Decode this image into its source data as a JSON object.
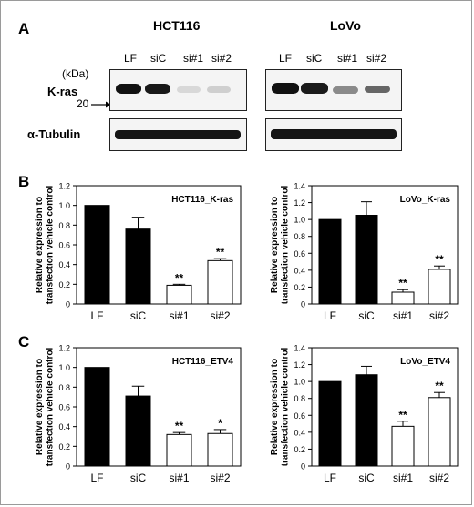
{
  "figure": {
    "panel_labels": [
      "A",
      "B",
      "C"
    ]
  },
  "blot": {
    "cell_lines": [
      "HCT116",
      "LoVo"
    ],
    "lanes": [
      "LF",
      "siC",
      "si#1",
      "si#2"
    ],
    "kda_label": "(kDa)",
    "marker_label": "20",
    "row_labels": [
      "K-ras",
      "α-Tubulin"
    ]
  },
  "chart_data": [
    {
      "type": "bar",
      "title": "HCT116_K-ras",
      "ylabel": "Relative expression to transfection vehicle control",
      "categories": [
        "LF",
        "siC",
        "si#1",
        "si#2"
      ],
      "values": [
        1.0,
        0.76,
        0.19,
        0.44
      ],
      "errors": [
        0,
        0.12,
        0.01,
        0.02
      ],
      "significance": [
        "",
        "",
        "**",
        "**"
      ],
      "bar_fill": [
        "#000000",
        "#000000",
        "#ffffff",
        "#ffffff"
      ],
      "ylim": [
        0,
        1.2
      ],
      "ytick_labels": [
        "0",
        "0.2",
        "0.4",
        "0.6",
        "0.8",
        "1.0",
        "1.2"
      ]
    },
    {
      "type": "bar",
      "title": "LoVo_K-ras",
      "ylabel": "Relative expression to transfection vehicle control",
      "categories": [
        "LF",
        "siC",
        "si#1",
        "si#2"
      ],
      "values": [
        1.0,
        1.05,
        0.14,
        0.41
      ],
      "errors": [
        0,
        0.16,
        0.03,
        0.04
      ],
      "significance": [
        "",
        "",
        "**",
        "**"
      ],
      "bar_fill": [
        "#000000",
        "#000000",
        "#ffffff",
        "#ffffff"
      ],
      "ylim": [
        0,
        1.4
      ],
      "ytick_labels": [
        "0",
        "0.2",
        "0.4",
        "0.6",
        "0.8",
        "1.0",
        "1.2",
        "1.4"
      ]
    },
    {
      "type": "bar",
      "title": "HCT116_ETV4",
      "ylabel": "Relative expression to transfection vehicle control",
      "categories": [
        "LF",
        "siC",
        "si#1",
        "si#2"
      ],
      "values": [
        1.0,
        0.71,
        0.32,
        0.33
      ],
      "errors": [
        0,
        0.1,
        0.02,
        0.04
      ],
      "significance": [
        "",
        "",
        "**",
        "*"
      ],
      "bar_fill": [
        "#000000",
        "#000000",
        "#ffffff",
        "#ffffff"
      ],
      "ylim": [
        0,
        1.2
      ],
      "ytick_labels": [
        "0",
        "0.2",
        "0.4",
        "0.6",
        "0.8",
        "1.0",
        "1.2"
      ]
    },
    {
      "type": "bar",
      "title": "LoVo_ETV4",
      "ylabel": "Relative expression to transfection vehicle control",
      "categories": [
        "LF",
        "siC",
        "si#1",
        "si#2"
      ],
      "values": [
        1.0,
        1.08,
        0.47,
        0.81
      ],
      "errors": [
        0,
        0.1,
        0.06,
        0.06
      ],
      "significance": [
        "",
        "",
        "**",
        "**"
      ],
      "bar_fill": [
        "#000000",
        "#000000",
        "#ffffff",
        "#ffffff"
      ],
      "ylim": [
        0,
        1.4
      ],
      "ytick_labels": [
        "0",
        "0.2",
        "0.4",
        "0.6",
        "0.8",
        "1.0",
        "1.2",
        "1.4"
      ]
    }
  ]
}
